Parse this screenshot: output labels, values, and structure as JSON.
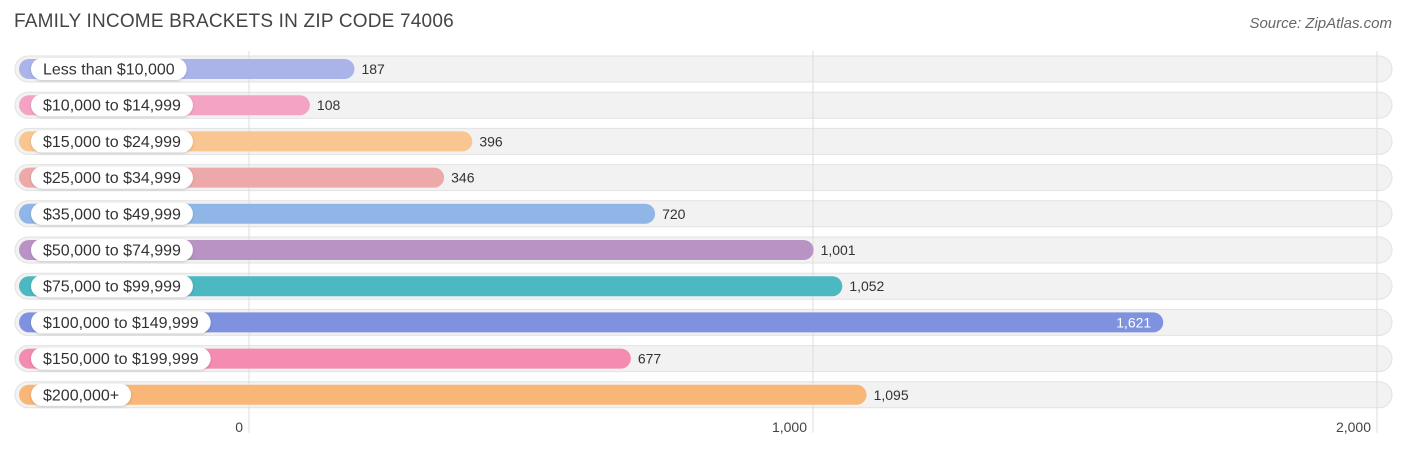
{
  "header": {
    "title": "FAMILY INCOME BRACKETS IN ZIP CODE 74006",
    "source": "Source: ZipAtlas.com"
  },
  "chart_data": {
    "type": "bar",
    "orientation": "horizontal",
    "title": "FAMILY INCOME BRACKETS IN ZIP CODE 74006",
    "categories": [
      "Less than $10,000",
      "$10,000 to $14,999",
      "$15,000 to $24,999",
      "$25,000 to $34,999",
      "$35,000 to $49,999",
      "$50,000 to $74,999",
      "$75,000 to $99,999",
      "$100,000 to $149,999",
      "$150,000 to $199,999",
      "$200,000+"
    ],
    "values": [
      187,
      108,
      396,
      346,
      720,
      1001,
      1052,
      1621,
      677,
      1095
    ],
    "value_labels": [
      "187",
      "108",
      "396",
      "346",
      "720",
      "1,001",
      "1,052",
      "1,621",
      "677",
      "1,095"
    ],
    "colors": [
      "#aab4e8",
      "#f5a3c4",
      "#f9c591",
      "#eda9a9",
      "#8fb6e6",
      "#b893c3",
      "#4bb8c2",
      "#7f92e0",
      "#f48bb0",
      "#f8b677"
    ],
    "xlim": [
      0,
      2000
    ],
    "xticks": [
      0,
      1000,
      2000
    ],
    "xtick_labels": [
      "0",
      "1,000",
      "2,000"
    ],
    "grid": true,
    "xlabel": "",
    "ylabel": ""
  }
}
